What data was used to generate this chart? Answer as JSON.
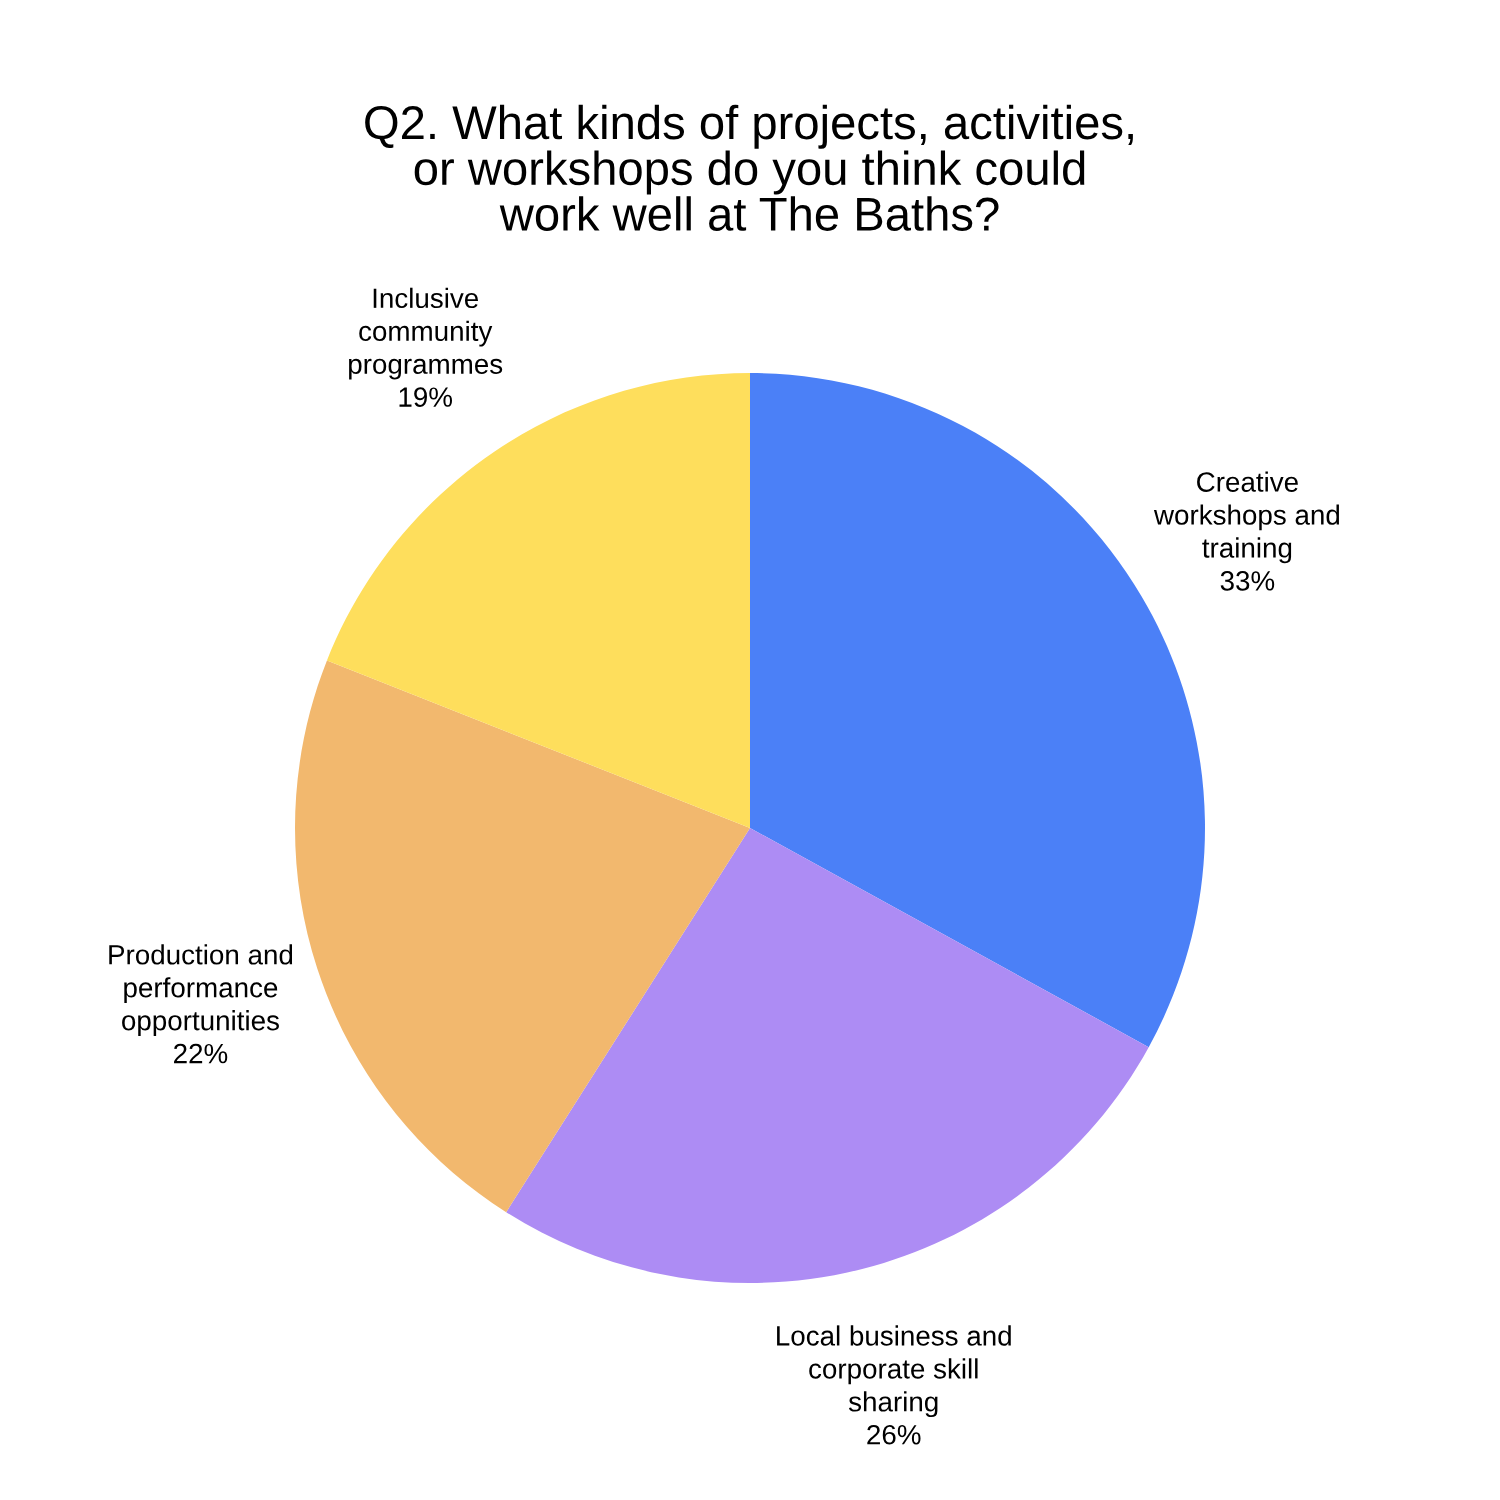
{
  "chart_data": {
    "type": "pie",
    "title": "Q2. What kinds of projects, activities,\nor workshops do you think could\nwork well at The Baths?",
    "categories": [
      "Creative\nworkshops and\ntraining",
      "Local business and\ncorporate skill\nsharing",
      "Production and\nperformance\nopportunities",
      "Inclusive\ncommunity\nprogrammes"
    ],
    "values": [
      33,
      26,
      22,
      19
    ],
    "colors": [
      "#4b80f7",
      "#ad8cf4",
      "#f2b86e",
      "#fede5c"
    ],
    "value_labels": [
      "33%",
      "26%",
      "22%",
      "19%"
    ]
  }
}
